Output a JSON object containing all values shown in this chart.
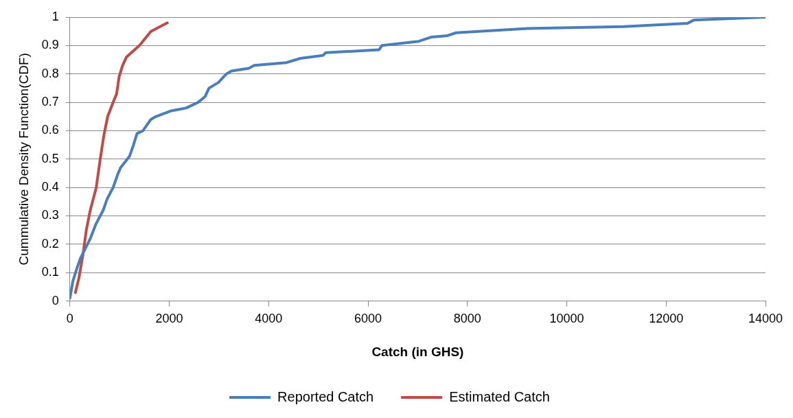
{
  "chart_data": {
    "type": "line",
    "xlabel": "Catch (in GHS)",
    "ylabel": "Cummulative Density Function(CDF)",
    "xlim": [
      0,
      14000
    ],
    "xticks": [
      0,
      2000,
      4000,
      6000,
      8000,
      10000,
      12000,
      14000
    ],
    "ylim": [
      0,
      1
    ],
    "yticks": [
      0,
      0.1,
      0.2,
      0.3,
      0.4,
      0.5,
      0.6,
      0.7,
      0.8,
      0.9,
      1
    ],
    "grid": "y",
    "legend": "bottom",
    "marker": "none",
    "line_style": "solid",
    "series": [
      {
        "name": "Reported Catch",
        "color": "#4a7ebb",
        "x": [
          0,
          60,
          150,
          210,
          410,
          520,
          670,
          750,
          870,
          970,
          1020,
          1200,
          1280,
          1350,
          1470,
          1630,
          1730,
          2040,
          2340,
          2580,
          2720,
          2800,
          2990,
          3150,
          3250,
          3600,
          3710,
          4360,
          4640,
          5090,
          5150,
          6220,
          6280,
          7020,
          7280,
          7600,
          7770,
          9210,
          11140,
          12430,
          12560,
          14000
        ],
        "values": [
          0.01,
          0.07,
          0.12,
          0.15,
          0.22,
          0.27,
          0.32,
          0.36,
          0.4,
          0.45,
          0.47,
          0.51,
          0.55,
          0.59,
          0.6,
          0.64,
          0.65,
          0.67,
          0.68,
          0.7,
          0.72,
          0.75,
          0.77,
          0.8,
          0.81,
          0.82,
          0.83,
          0.84,
          0.855,
          0.865,
          0.875,
          0.885,
          0.9,
          0.915,
          0.93,
          0.935,
          0.945,
          0.96,
          0.967,
          0.978,
          0.99,
          1
        ]
      },
      {
        "name": "Estimated Catch",
        "color": "#be4b48",
        "x": [
          110,
          180,
          260,
          330,
          410,
          530,
          610,
          680,
          760,
          870,
          940,
          990,
          1060,
          1140,
          1400,
          1630,
          1960
        ],
        "values": [
          0.03,
          0.08,
          0.16,
          0.25,
          0.32,
          0.4,
          0.5,
          0.58,
          0.65,
          0.7,
          0.73,
          0.79,
          0.83,
          0.86,
          0.9,
          0.95,
          0.98
        ]
      }
    ]
  }
}
